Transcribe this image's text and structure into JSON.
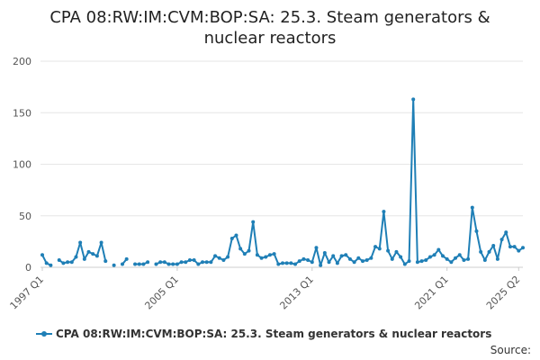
{
  "chart_data": {
    "type": "line",
    "title_lines": [
      "CPA 08:RW:IM:CVM:BOP:SA: 25.3. Steam generators &",
      "nuclear reactors"
    ],
    "xlabel": "",
    "ylabel": "",
    "ylim": [
      0,
      200
    ],
    "y_ticks": [
      0,
      50,
      100,
      150,
      200
    ],
    "x_tick_labels": [
      "1997 Q1",
      "2005 Q1",
      "2013 Q1",
      "2021 Q1",
      "2025 Q2"
    ],
    "grid": true,
    "legend_position": "bottom",
    "color": "#1f7fb6",
    "series": [
      {
        "name": "CPA 08:RW:IM:CVM:BOP:SA: 25.3. Steam generators & nuclear reactors",
        "start": "1997 Q1",
        "values": [
          12,
          4,
          2,
          null,
          7,
          4,
          5,
          5,
          10,
          24,
          8,
          15,
          13,
          11,
          24,
          6,
          null,
          2,
          null,
          3,
          8,
          null,
          3,
          3,
          3,
          5,
          null,
          3,
          5,
          5,
          3,
          3,
          3,
          5,
          5,
          7,
          7,
          3,
          5,
          5,
          5,
          11,
          9,
          7,
          10,
          28,
          31,
          18,
          13,
          16,
          44,
          12,
          9,
          10,
          12,
          13,
          3,
          4,
          4,
          4,
          3,
          6,
          8,
          7,
          5,
          19,
          2,
          14,
          5,
          11,
          4,
          11,
          12,
          8,
          5,
          9,
          6,
          7,
          9,
          20,
          18,
          54,
          16,
          8,
          15,
          10,
          3,
          6,
          163,
          5,
          6,
          7,
          10,
          12,
          17,
          11,
          8,
          5,
          9,
          12,
          7,
          8,
          58,
          35,
          15,
          7,
          15,
          21,
          8,
          27,
          34,
          20,
          20,
          16,
          19
        ]
      }
    ]
  },
  "legend": {
    "label": "CPA 08:RW:IM:CVM:BOP:SA: 25.3. Steam generators & nuclear reactors"
  },
  "footer": {
    "source_label": "Source:"
  }
}
